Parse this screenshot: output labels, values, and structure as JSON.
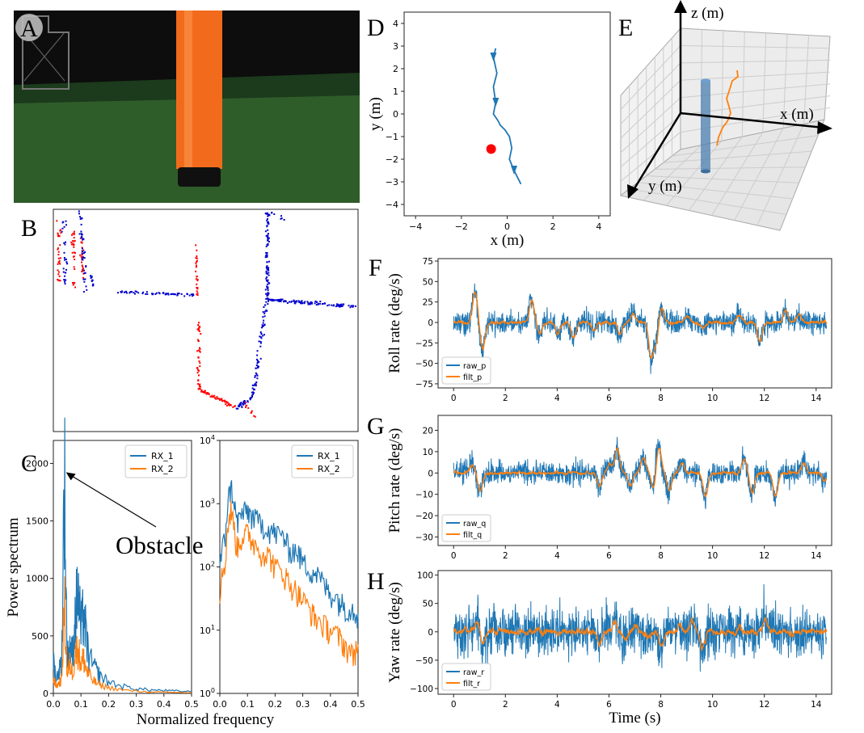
{
  "panel_letters": [
    "A",
    "B",
    "C",
    "D",
    "E",
    "F",
    "G",
    "H"
  ],
  "colors": {
    "c1": "#1f77b4",
    "c2": "#ff7f0e",
    "red": "#ff0000",
    "blue": "#0000cc",
    "pillar": "#f26b1c",
    "pillar_dark": "#101010",
    "floor": "#2f5d2a",
    "backdrop": "#0d0d0d"
  },
  "panel_a": {
    "description_icon": "photo-of-orange-pillar-obstacle"
  },
  "panel_b": {
    "type": "scatter",
    "series": [
      {
        "color": "red"
      },
      {
        "color": "blue"
      }
    ]
  },
  "chart_data": [
    {
      "id": "C_linear",
      "type": "line",
      "ylabel": "Power spectrum",
      "xlabel": "Normalized frequency",
      "xlim": [
        0,
        0.5
      ],
      "ylim": [
        0,
        2200
      ],
      "xticks": [
        "0.0",
        "0.1",
        "0.2",
        "0.3",
        "0.4",
        "0.5"
      ],
      "yticks": [
        "0",
        "500",
        "1000",
        "1500",
        "2000"
      ],
      "annotation": "Obstacle",
      "annotation_target": [
        0.04,
        1930
      ],
      "legend": "top-right",
      "series": [
        {
          "name": "RX_1",
          "x": [
            0,
            0.01,
            0.02,
            0.03,
            0.04,
            0.05,
            0.06,
            0.07,
            0.08,
            0.09,
            0.1,
            0.11,
            0.12,
            0.13,
            0.15,
            0.17,
            0.2,
            0.25,
            0.3,
            0.35,
            0.4,
            0.45,
            0.5
          ],
          "y": [
            300,
            120,
            200,
            260,
            1930,
            300,
            420,
            330,
            680,
            900,
            540,
            700,
            450,
            300,
            220,
            150,
            100,
            60,
            40,
            30,
            25,
            20,
            15
          ]
        },
        {
          "name": "RX_2",
          "x": [
            0,
            0.01,
            0.02,
            0.03,
            0.04,
            0.05,
            0.06,
            0.07,
            0.08,
            0.09,
            0.1,
            0.11,
            0.12,
            0.13,
            0.15,
            0.17,
            0.2,
            0.25,
            0.3,
            0.35,
            0.4,
            0.45,
            0.5
          ],
          "y": [
            150,
            60,
            90,
            120,
            790,
            160,
            250,
            180,
            360,
            380,
            260,
            300,
            200,
            150,
            100,
            70,
            50,
            30,
            20,
            12,
            10,
            8,
            6
          ]
        }
      ]
    },
    {
      "id": "C_log",
      "type": "line",
      "xlim": [
        0,
        0.5
      ],
      "ylim_log10": [
        0,
        4
      ],
      "xticks": [
        "0.0",
        "0.1",
        "0.2",
        "0.3",
        "0.4",
        "0.5"
      ],
      "yticks": [
        "10^0",
        "10^1",
        "10^2",
        "10^3",
        "10^4"
      ],
      "yscale": "log",
      "legend": "top-right",
      "series": [
        {
          "name": "RX_1",
          "x": [
            0,
            0.02,
            0.04,
            0.06,
            0.08,
            0.1,
            0.12,
            0.15,
            0.18,
            0.2,
            0.23,
            0.25,
            0.28,
            0.3,
            0.33,
            0.35,
            0.38,
            0.4,
            0.43,
            0.45,
            0.48,
            0.5
          ],
          "y": [
            100,
            300,
            1930,
            500,
            700,
            800,
            600,
            500,
            400,
            350,
            300,
            200,
            180,
            120,
            90,
            80,
            50,
            40,
            30,
            25,
            22,
            18
          ]
        },
        {
          "name": "RX_2",
          "x": [
            0,
            0.02,
            0.04,
            0.06,
            0.08,
            0.1,
            0.12,
            0.15,
            0.18,
            0.2,
            0.23,
            0.25,
            0.28,
            0.3,
            0.33,
            0.35,
            0.38,
            0.4,
            0.43,
            0.45,
            0.48,
            0.5
          ],
          "y": [
            40,
            120,
            790,
            200,
            300,
            350,
            250,
            180,
            150,
            100,
            80,
            60,
            40,
            30,
            20,
            15,
            12,
            10,
            8,
            6,
            4,
            6
          ]
        }
      ]
    },
    {
      "id": "D",
      "type": "line",
      "xlabel": "x (m)",
      "ylabel": "y (m)",
      "xlim": [
        -4.5,
        4.5
      ],
      "ylim": [
        -4.5,
        4.5
      ],
      "xticks": [
        "−4",
        "−2",
        "0",
        "2",
        "4"
      ],
      "yticks": [
        "4",
        "3",
        "2",
        "1",
        "0",
        "−1",
        "−2",
        "−3",
        "−4"
      ],
      "trajectory": {
        "x": [
          -0.5,
          -0.6,
          -0.45,
          -0.6,
          -0.5,
          -0.6,
          -0.4,
          -0.3,
          -0.1,
          0.1,
          0.2,
          0.1,
          0.3,
          0.5,
          0.6
        ],
        "y": [
          2.9,
          2.5,
          1.8,
          1.2,
          0.5,
          0,
          -0.3,
          -0.5,
          -0.7,
          -1.0,
          -1.5,
          -2.0,
          -2.5,
          -2.9,
          -3.1
        ]
      },
      "obstacle": {
        "x": -0.7,
        "y": -1.55
      }
    },
    {
      "id": "E",
      "type": "line",
      "axis_labels": [
        "x (m)",
        "y (m)",
        "z (m)"
      ]
    },
    {
      "id": "F",
      "type": "line",
      "ylabel": "Roll rate (deg/s)",
      "xlim": [
        -0.6,
        14.6
      ],
      "ylim": [
        -80,
        78
      ],
      "xticks": [
        "0",
        "2",
        "4",
        "6",
        "8",
        "10",
        "12",
        "14"
      ],
      "yticks": [
        "75",
        "50",
        "25",
        "0",
        "−25",
        "−50",
        "−75"
      ],
      "legend": "bottom-left",
      "series": [
        {
          "name": "raw_p"
        },
        {
          "name": "filt_p"
        }
      ],
      "noise_amp_raw": 18,
      "events": [
        [
          0.8,
          40
        ],
        [
          1.1,
          -35
        ],
        [
          3.0,
          28
        ],
        [
          3.3,
          -15
        ],
        [
          4.0,
          -15
        ],
        [
          4.6,
          -20
        ],
        [
          5.4,
          -10
        ],
        [
          6.4,
          -15
        ],
        [
          6.9,
          12
        ],
        [
          7.6,
          -45
        ],
        [
          7.8,
          -25
        ],
        [
          8.0,
          20
        ],
        [
          9.0,
          8
        ],
        [
          9.6,
          -8
        ],
        [
          11.0,
          10
        ],
        [
          11.8,
          -25
        ],
        [
          12.8,
          15
        ],
        [
          13.3,
          10
        ]
      ]
    },
    {
      "id": "G",
      "type": "line",
      "ylabel": "Pitch rate (deg/s)",
      "xlim": [
        -0.6,
        14.6
      ],
      "ylim": [
        -34,
        27
      ],
      "xticks": [
        "0",
        "2",
        "4",
        "6",
        "8",
        "10",
        "12",
        "14"
      ],
      "yticks": [
        "20",
        "10",
        "0",
        "−10",
        "−20",
        "−30"
      ],
      "legend": "bottom-left",
      "series": [
        {
          "name": "raw_q"
        },
        {
          "name": "filt_q"
        }
      ],
      "noise_amp_raw": 7,
      "events": [
        [
          0.7,
          4
        ],
        [
          1.0,
          -9
        ],
        [
          5.6,
          -6
        ],
        [
          6.0,
          5
        ],
        [
          6.3,
          12
        ],
        [
          6.8,
          -7
        ],
        [
          7.3,
          8
        ],
        [
          7.7,
          -8
        ],
        [
          7.9,
          14
        ],
        [
          8.3,
          -9
        ],
        [
          8.8,
          5
        ],
        [
          9.7,
          -12
        ],
        [
          11.2,
          7
        ],
        [
          11.5,
          -10
        ],
        [
          12.4,
          -12
        ],
        [
          13.5,
          5
        ],
        [
          14.3,
          -4
        ]
      ]
    },
    {
      "id": "H",
      "type": "line",
      "ylabel": "Yaw rate (deg/s)",
      "xlabel": "Time (s)",
      "xlim": [
        -0.6,
        14.6
      ],
      "ylim": [
        -110,
        108
      ],
      "xticks": [
        "0",
        "2",
        "4",
        "6",
        "8",
        "10",
        "12",
        "14"
      ],
      "yticks": [
        "100",
        "50",
        "0",
        "−50",
        "−100"
      ],
      "legend": "bottom-left",
      "series": [
        {
          "name": "raw_r"
        },
        {
          "name": "filt_r"
        }
      ],
      "noise_amp_raw": 55,
      "events": [
        [
          0.9,
          20
        ],
        [
          1.1,
          -25
        ],
        [
          5.6,
          -25
        ],
        [
          6.2,
          20
        ],
        [
          6.6,
          -15
        ],
        [
          7.0,
          10
        ],
        [
          7.5,
          -10
        ],
        [
          8.0,
          -25
        ],
        [
          8.7,
          10
        ],
        [
          9.2,
          20
        ],
        [
          9.6,
          -30
        ],
        [
          11.0,
          10
        ],
        [
          12.0,
          20
        ],
        [
          13.0,
          -5
        ]
      ]
    }
  ]
}
